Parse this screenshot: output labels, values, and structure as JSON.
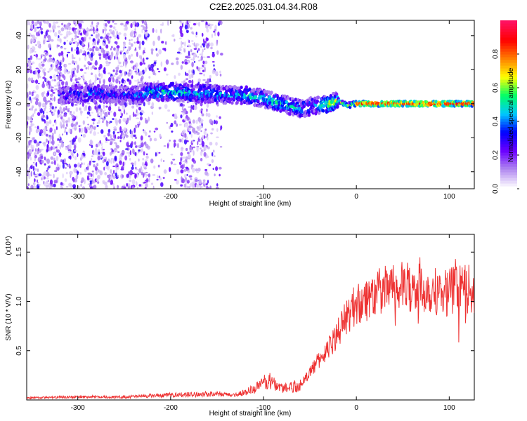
{
  "title": "C2E2.2025.031.04.34.R08",
  "chart_data": [
    {
      "type": "heatmap",
      "xlabel": "Height of straight line (km)",
      "ylabel": "Frequency (Hz)",
      "xlim": [
        -355,
        127
      ],
      "ylim": [
        -50,
        49
      ],
      "xticks": [
        -300,
        -200,
        -100,
        0,
        100
      ],
      "yticks": [
        -40,
        -20,
        0,
        20,
        40
      ],
      "colorbar": {
        "label": "Normalized spectral amplitude",
        "range": [
          0,
          1
        ],
        "ticks": [
          "0.0",
          "0.2",
          "0.4",
          "0.6",
          "0.8"
        ],
        "colors": [
          "#ffffff",
          "#b088f0",
          "#6a00ff",
          "#0000ff",
          "#00c8ff",
          "#00ff66",
          "#ffff00",
          "#ff8000",
          "#ff0000",
          "#ff1060"
        ]
      },
      "ridge": [
        {
          "x": -320,
          "y": 5,
          "a": 0.25
        },
        {
          "x": -300,
          "y": 6,
          "a": 0.3
        },
        {
          "x": -280,
          "y": 6,
          "a": 0.35
        },
        {
          "x": -260,
          "y": 5,
          "a": 0.3
        },
        {
          "x": -240,
          "y": 5,
          "a": 0.3
        },
        {
          "x": -220,
          "y": 7,
          "a": 0.45
        },
        {
          "x": -200,
          "y": 7,
          "a": 0.5
        },
        {
          "x": -180,
          "y": 6,
          "a": 0.45
        },
        {
          "x": -160,
          "y": 6,
          "a": 0.4
        },
        {
          "x": -140,
          "y": 5,
          "a": 0.4
        },
        {
          "x": -120,
          "y": 5,
          "a": 0.45
        },
        {
          "x": -100,
          "y": 3,
          "a": 0.45
        },
        {
          "x": -80,
          "y": 0,
          "a": 0.5
        },
        {
          "x": -60,
          "y": -3,
          "a": 0.4
        },
        {
          "x": -45,
          "y": -1,
          "a": 0.35
        },
        {
          "x": -30,
          "y": 0,
          "a": 0.6
        },
        {
          "x": -20,
          "y": 2,
          "a": 0.65
        },
        {
          "x": -10,
          "y": -1,
          "a": 0.55
        },
        {
          "x": 0,
          "y": 0,
          "a": 0.85
        },
        {
          "x": 20,
          "y": 0,
          "a": 0.9
        },
        {
          "x": 50,
          "y": 0,
          "a": 0.9
        },
        {
          "x": 80,
          "y": 0,
          "a": 0.92
        },
        {
          "x": 110,
          "y": 0,
          "a": 0.9
        },
        {
          "x": 127,
          "y": 0,
          "a": 0.9
        }
      ]
    },
    {
      "type": "line",
      "xlabel": "Height of straight line (km)",
      "ylabel": "SNR (10 * V/V)",
      "yunit": "(x10⁴)",
      "xlim": [
        -355,
        127
      ],
      "ylim": [
        0,
        1.68
      ],
      "xticks": [
        -300,
        -200,
        -100,
        0,
        100
      ],
      "yticks": [
        0.5,
        1.0,
        1.5
      ],
      "ytick_labels": [
        "0.5",
        "1.0",
        "1.5"
      ],
      "series": [
        {
          "color": "#ee3333",
          "x": [
            -355,
            -300,
            -250,
            -200,
            -160,
            -130,
            -110,
            -95,
            -80,
            -60,
            -45,
            -30,
            -20,
            -10,
            0,
            15,
            30,
            50,
            70,
            90,
            110,
            127
          ],
          "y": [
            0.02,
            0.03,
            0.03,
            0.05,
            0.06,
            0.05,
            0.11,
            0.2,
            0.12,
            0.15,
            0.35,
            0.52,
            0.68,
            0.85,
            0.98,
            1.05,
            1.12,
            1.15,
            1.13,
            1.1,
            1.12,
            1.12
          ]
        }
      ]
    }
  ]
}
